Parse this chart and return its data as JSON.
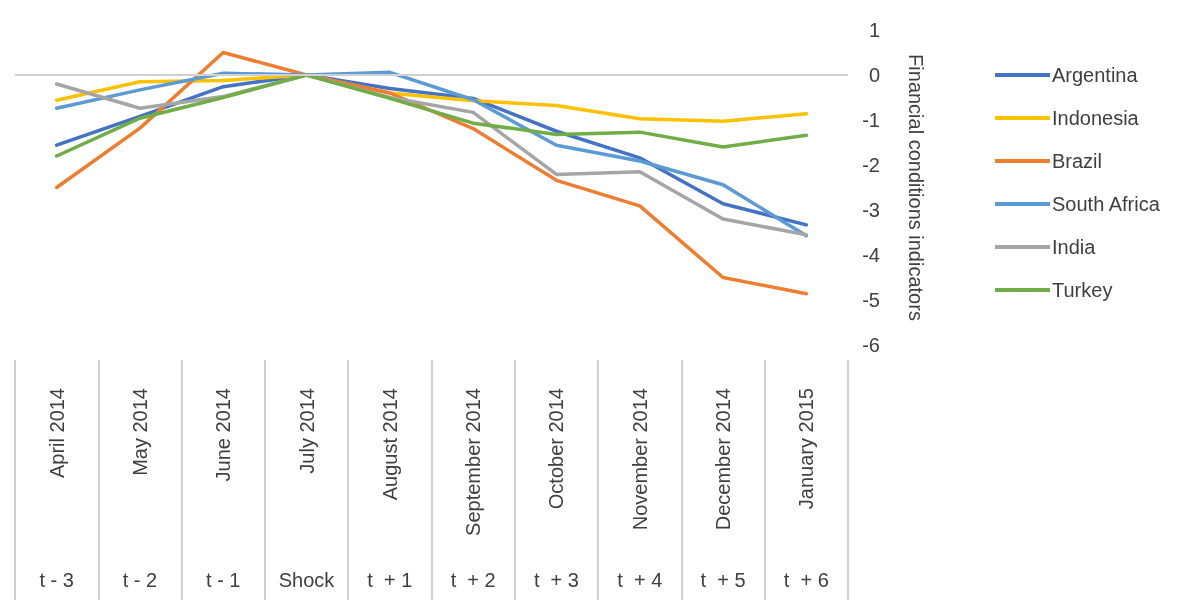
{
  "chart_data": {
    "type": "line",
    "ylabel": "Financial conditions indicators",
    "categories": [
      "April 2014",
      "May 2014",
      "June 2014",
      "July 2014",
      "August 2014",
      "September 2014",
      "October 2014",
      "November 2014",
      "December 2014",
      "January 2015"
    ],
    "series": [
      {
        "name": "Argentina",
        "color": "#4472c4",
        "values": [
          -1.56,
          -0.92,
          -0.26,
          0,
          -0.3,
          -0.52,
          -1.25,
          -1.84,
          -2.86,
          -3.33
        ]
      },
      {
        "name": "Indonesia",
        "color": "#ffc000",
        "values": [
          -0.56,
          -0.15,
          -0.12,
          0,
          -0.4,
          -0.57,
          -0.68,
          -0.97,
          -1.03,
          -0.86
        ]
      },
      {
        "name": "Brazil",
        "color": "#ed7d31",
        "values": [
          -2.5,
          -1.18,
          0.5,
          0,
          -0.4,
          -1.19,
          -2.34,
          -2.91,
          -4.5,
          -4.86
        ]
      },
      {
        "name": "South Africa",
        "color": "#5b9bd5",
        "values": [
          -0.74,
          -0.33,
          0.04,
          0,
          0.06,
          -0.55,
          -1.56,
          -1.91,
          -2.44,
          -3.57
        ]
      },
      {
        "name": "India",
        "color": "#a5a5a5",
        "values": [
          -0.2,
          -0.74,
          -0.48,
          0,
          -0.5,
          -0.83,
          -2.21,
          -2.15,
          -3.2,
          -3.55
        ]
      },
      {
        "name": "Turkey",
        "color": "#70ad47",
        "values": [
          -1.8,
          -0.96,
          -0.5,
          0,
          -0.52,
          -1.07,
          -1.32,
          -1.27,
          -1.6,
          -1.34
        ]
      }
    ],
    "ylim": [
      -6,
      1
    ],
    "yticks": [
      -6,
      -5,
      -4,
      -3,
      -2,
      -1,
      0,
      1
    ],
    "annotations": [
      "t - 3",
      "t - 2",
      "t - 1",
      "Shock",
      "t  + 1",
      "t  + 2",
      "t  + 3",
      "t  + 4",
      "t  + 5",
      "t  + 6"
    ],
    "ref_lines": [
      {
        "axis": "y",
        "value": 0,
        "color": "#d0d0d0"
      }
    ],
    "grid": false,
    "legend": "right",
    "marker": "none",
    "line_style": "solid"
  }
}
